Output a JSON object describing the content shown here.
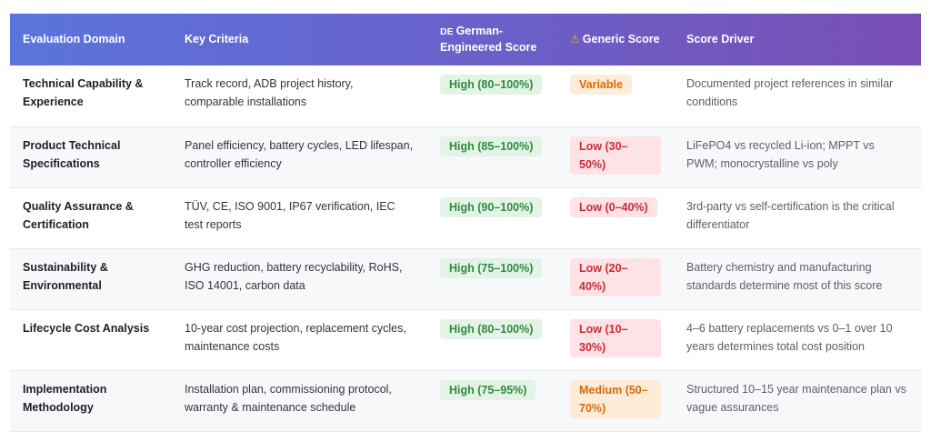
{
  "table": {
    "headers": {
      "domain": "Evaluation Domain",
      "criteria": "Key Criteria",
      "german_icon": "DE",
      "german": "German-Engineered Score",
      "generic_icon": "⚠",
      "generic": "Generic Score",
      "driver": "Score Driver"
    },
    "rows": [
      {
        "domain": "Technical Capability & Experience",
        "criteria": "Track record, ADB project history, comparable installations",
        "german_score": "High (80–100%)",
        "german_level": "high",
        "generic_score": "Variable",
        "generic_level": "variable",
        "driver": "Documented project references in similar conditions"
      },
      {
        "domain": "Product Technical Specifications",
        "criteria": "Panel efficiency, battery cycles, LED lifespan, controller efficiency",
        "german_score": "High (85–100%)",
        "german_level": "high",
        "generic_score": "Low (30–50%)",
        "generic_level": "low",
        "driver": "LiFePO4 vs recycled Li-ion; MPPT vs PWM; monocrystalline vs poly"
      },
      {
        "domain": "Quality Assurance & Certification",
        "criteria": "TÜV, CE, ISO 9001, IP67 verification, IEC test reports",
        "german_score": "High (90–100%)",
        "german_level": "high",
        "generic_score": "Low (0–40%)",
        "generic_level": "low",
        "driver": "3rd-party vs self-certification is the critical differentiator"
      },
      {
        "domain": "Sustainability & Environmental",
        "criteria": "GHG reduction, battery recyclability, RoHS, ISO 14001, carbon data",
        "german_score": "High (75–100%)",
        "german_level": "high",
        "generic_score": "Low (20–40%)",
        "generic_level": "low",
        "driver": "Battery chemistry and manufacturing standards determine most of this score"
      },
      {
        "domain": "Lifecycle Cost Analysis",
        "criteria": "10-year cost projection, replacement cycles, maintenance costs",
        "german_score": "High (80–100%)",
        "german_level": "high",
        "generic_score": "Low (10–30%)",
        "generic_level": "low",
        "driver": "4–6 battery replacements vs 0–1 over 10 years determines total cost position"
      },
      {
        "domain": "Implementation Methodology",
        "criteria": "Installation plan, commissioning protocol, warranty & maintenance schedule",
        "german_score": "High (75–95%)",
        "german_level": "high",
        "generic_score": "Medium (50–70%)",
        "generic_level": "medium",
        "driver": "Structured 10–15 year maintenance plan vs vague assurances"
      }
    ]
  },
  "colors": {
    "header_start": "#5b74dd",
    "header_end": "#7a4fb4",
    "high_bg": "#e3f3e6",
    "high_fg": "#2e8b3e",
    "low_bg": "#fde3e5",
    "low_fg": "#cc2b36",
    "medium_bg": "#fdecd8",
    "medium_fg": "#d8690c"
  }
}
